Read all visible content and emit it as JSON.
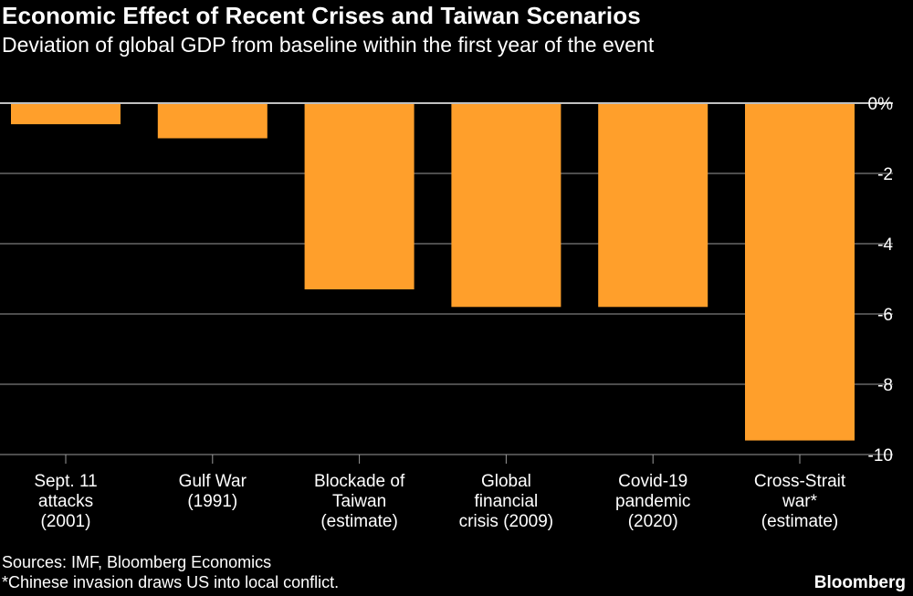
{
  "chart_data": {
    "type": "bar",
    "title": "Economic Effect of Recent Crises and Taiwan Scenarios",
    "subtitle": "Deviation of global GDP from baseline within the first year of the event",
    "ylabel": "",
    "xlabel": "",
    "ylim": [
      -10,
      0
    ],
    "y_ticks": [
      {
        "value": 0,
        "label": "0%"
      },
      {
        "value": -2,
        "label": "-2"
      },
      {
        "value": -4,
        "label": "-4"
      },
      {
        "value": -6,
        "label": "-6"
      },
      {
        "value": -8,
        "label": "-8"
      },
      {
        "value": -10,
        "label": "-10"
      }
    ],
    "categories": [
      [
        "Sept. 11",
        "attacks",
        "(2001)"
      ],
      [
        "Gulf War",
        "(1991)"
      ],
      [
        "Blockade of",
        "Taiwan",
        "(estimate)"
      ],
      [
        "Global",
        "financial",
        "crisis (2009)"
      ],
      [
        "Covid-19",
        "pandemic",
        "(2020)"
      ],
      [
        "Cross-Strait",
        "war*",
        "(estimate)"
      ]
    ],
    "values": [
      -0.6,
      -1.0,
      -5.3,
      -5.8,
      -5.8,
      -9.6
    ],
    "bar_color": "#FF9F2B",
    "grid": true
  },
  "footer": {
    "source": "Sources: IMF, Bloomberg Economics",
    "footnote": "*Chinese invasion draws US into local conflict.",
    "brand": "Bloomberg"
  }
}
